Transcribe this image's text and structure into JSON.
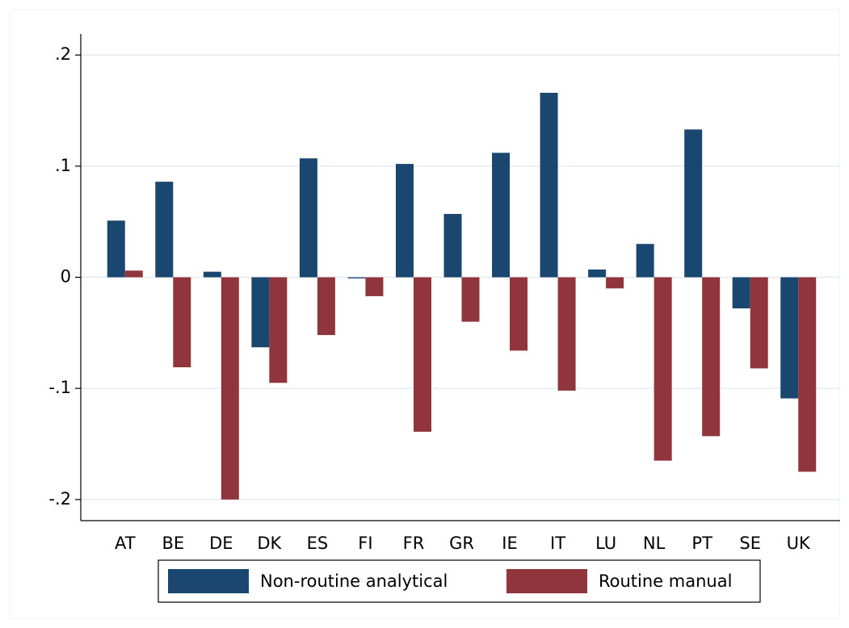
{
  "chart_data": {
    "type": "bar",
    "categories": [
      "AT",
      "BE",
      "DE",
      "DK",
      "ES",
      "FI",
      "FR",
      "GR",
      "IE",
      "IT",
      "LU",
      "NL",
      "PT",
      "SE",
      "UK"
    ],
    "series": [
      {
        "name": "Non-routine analytical",
        "color": "#1a476f",
        "values": [
          0.051,
          0.086,
          0.005,
          -0.063,
          0.107,
          -0.001,
          0.102,
          0.057,
          0.112,
          0.166,
          0.007,
          0.03,
          0.133,
          -0.028,
          -0.109
        ]
      },
      {
        "name": "Routine manual",
        "color": "#90353b",
        "values": [
          0.006,
          -0.081,
          -0.2,
          -0.095,
          -0.052,
          -0.017,
          -0.139,
          -0.04,
          -0.066,
          -0.102,
          -0.01,
          -0.165,
          -0.143,
          -0.082,
          -0.175
        ]
      }
    ],
    "ylim": [
      -0.219,
      0.219
    ],
    "yticks": [
      {
        "value": -0.2,
        "label": "-.2"
      },
      {
        "value": -0.1,
        "label": "-.1"
      },
      0,
      {
        "value": 0.1,
        "label": ".1"
      },
      {
        "value": 0.2,
        "label": ".2"
      }
    ],
    "grid": true,
    "legend": "bottom"
  }
}
